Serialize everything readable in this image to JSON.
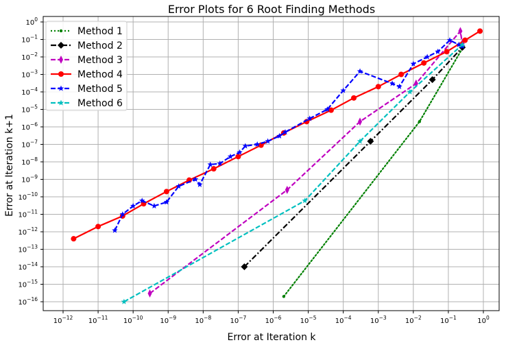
{
  "chart_data": {
    "type": "line",
    "title": "Error Plots for 6 Root Finding Methods",
    "xlabel": "Error at Iteration k",
    "ylabel": "Error at Iteration k+1",
    "xscale": "log",
    "yscale": "log",
    "xlim": [
      1e-12,
      1
    ],
    "ylim": [
      1e-16,
      1
    ],
    "grid": true,
    "legend_position": "top-left",
    "x_tick_labels": [
      {
        "exp": -12,
        "base": "10",
        "sup": "−12"
      },
      {
        "exp": -11,
        "base": "10",
        "sup": "−11"
      },
      {
        "exp": -10,
        "base": "10",
        "sup": "−10"
      },
      {
        "exp": -9,
        "base": "10",
        "sup": "−9"
      },
      {
        "exp": -8,
        "base": "10",
        "sup": "−8"
      },
      {
        "exp": -7,
        "base": "10",
        "sup": "−7"
      },
      {
        "exp": -6,
        "base": "10",
        "sup": "−6"
      },
      {
        "exp": -5,
        "base": "10",
        "sup": "−5"
      },
      {
        "exp": -4,
        "base": "10",
        "sup": "−4"
      },
      {
        "exp": -3,
        "base": "10",
        "sup": "−3"
      },
      {
        "exp": -2,
        "base": "10",
        "sup": "−2"
      },
      {
        "exp": -1,
        "base": "10",
        "sup": "−1"
      },
      {
        "exp": 0,
        "base": "10",
        "sup": "0"
      }
    ],
    "y_tick_labels": [
      {
        "exp": 0,
        "base": "10",
        "sup": "0"
      },
      {
        "exp": -1,
        "base": "10",
        "sup": "−1"
      },
      {
        "exp": -2,
        "base": "10",
        "sup": "−2"
      },
      {
        "exp": -3,
        "base": "10",
        "sup": "−3"
      },
      {
        "exp": -4,
        "base": "10",
        "sup": "−4"
      },
      {
        "exp": -5,
        "base": "10",
        "sup": "−5"
      },
      {
        "exp": -6,
        "base": "10",
        "sup": "−6"
      },
      {
        "exp": -7,
        "base": "10",
        "sup": "−7"
      },
      {
        "exp": -8,
        "base": "10",
        "sup": "−8"
      },
      {
        "exp": -9,
        "base": "10",
        "sup": "−9"
      },
      {
        "exp": -10,
        "base": "10",
        "sup": "−10"
      },
      {
        "exp": -11,
        "base": "10",
        "sup": "−11"
      },
      {
        "exp": -12,
        "base": "10",
        "sup": "−12"
      },
      {
        "exp": -13,
        "base": "10",
        "sup": "−13"
      },
      {
        "exp": -14,
        "base": "10",
        "sup": "−14"
      },
      {
        "exp": -15,
        "base": "10",
        "sup": "−15"
      },
      {
        "exp": -16,
        "base": "10",
        "sup": "−16"
      }
    ],
    "series": [
      {
        "name": "Method 1",
        "color": "#008000",
        "linestyle": "dotted",
        "marker": "dot",
        "x": [
          2e-06,
          0.015,
          0.25
        ],
        "y": [
          2e-16,
          2e-06,
          0.03
        ]
      },
      {
        "name": "Method 2",
        "color": "#000000",
        "linestyle": "dashdot",
        "marker": "diamond",
        "x": [
          1.5e-07,
          0.0006,
          0.035,
          0.25
        ],
        "y": [
          1e-14,
          1.5e-07,
          0.0005,
          0.035
        ]
      },
      {
        "name": "Method 3",
        "color": "#bf00bf",
        "linestyle": "dashed",
        "marker": "thin_diamond",
        "x": [
          3e-10,
          2.5e-06,
          0.0003,
          0.012,
          0.22,
          0.25
        ],
        "y": [
          3e-16,
          2.5e-10,
          2e-06,
          0.0003,
          0.3,
          0.06
        ]
      },
      {
        "name": "Method 4",
        "color": "#ff0000",
        "linestyle": "solid",
        "marker": "circle",
        "x": [
          2e-12,
          1e-11,
          5e-11,
          2e-10,
          9e-10,
          4e-09,
          2e-08,
          1e-07,
          4.5e-07,
          2e-06,
          9e-06,
          4.5e-05,
          0.0002,
          0.001,
          0.0045,
          0.02,
          0.09,
          0.3,
          0.8
        ],
        "y": [
          4e-13,
          2e-12,
          8e-12,
          4e-11,
          2e-10,
          9e-10,
          4e-09,
          2e-08,
          9e-08,
          4.5e-07,
          2e-06,
          9e-06,
          4.5e-05,
          0.0002,
          0.001,
          0.0045,
          0.02,
          0.09,
          0.3
        ]
      },
      {
        "name": "Method 5",
        "color": "#0000ff",
        "linestyle": "dashed",
        "marker": "star",
        "x": [
          3e-11,
          5e-11,
          1e-10,
          1.8e-10,
          4e-10,
          9e-10,
          2e-09,
          6e-09,
          8e-09,
          1.6e-08,
          3e-08,
          6e-08,
          1.1e-07,
          1.6e-07,
          3.5e-07,
          7e-07,
          1.5e-06,
          2.2e-06,
          1.1e-05,
          3.5e-05,
          0.0001,
          0.0003,
          0.0025,
          0.004,
          0.01,
          0.025,
          0.05,
          0.11,
          0.2,
          0.25
        ],
        "y": [
          1.2e-12,
          1e-11,
          3e-11,
          6e-11,
          3e-11,
          5e-11,
          4e-10,
          1e-09,
          5e-10,
          7e-09,
          8e-09,
          2e-08,
          3.5e-08,
          8e-08,
          1e-07,
          1.5e-07,
          3e-07,
          5e-07,
          3e-06,
          1e-05,
          0.00012,
          0.0015,
          0.0003,
          0.0002,
          0.004,
          0.01,
          0.02,
          0.09,
          0.05,
          0.04
        ]
      },
      {
        "name": "Method 6",
        "color": "#00bfbf",
        "linestyle": "dashed",
        "marker": "star",
        "x": [
          5.5e-11,
          8e-06,
          0.0003,
          0.008,
          0.25
        ],
        "y": [
          1e-16,
          6e-11,
          1.5e-07,
          0.0001,
          0.05
        ]
      }
    ]
  }
}
